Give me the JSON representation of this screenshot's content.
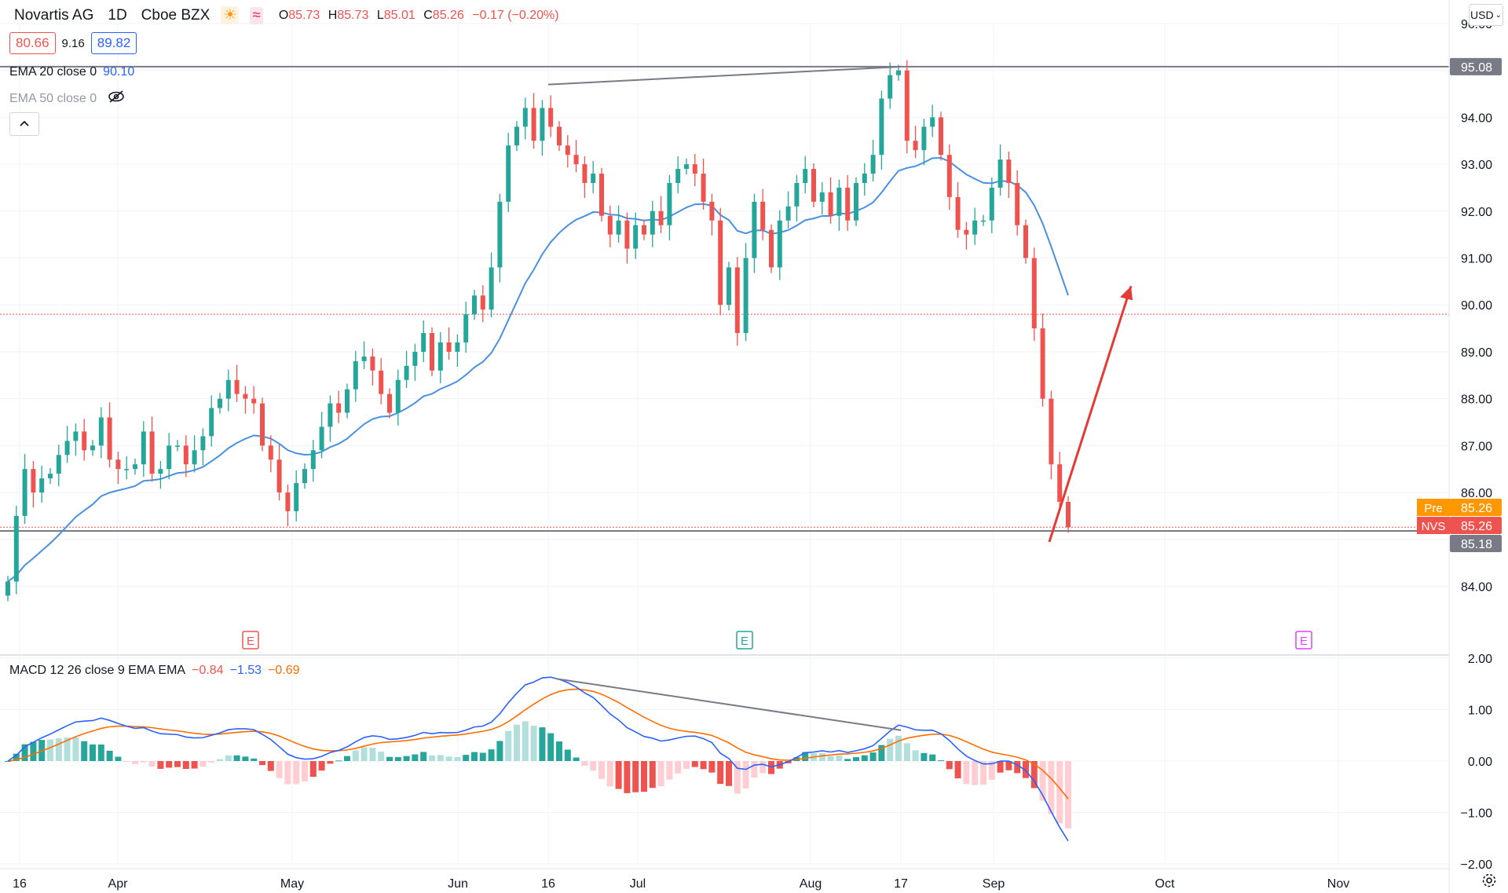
{
  "header": {
    "symbol": "Novartis AG",
    "interval": "1D",
    "exchange": "Cboe BZX",
    "ohlc": {
      "o_label": "O",
      "o": "85.73",
      "h_label": "H",
      "h": "85.73",
      "l_label": "L",
      "l": "85.01",
      "c_label": "C",
      "c": "85.26",
      "change": "−0.17 (−0.20%)"
    },
    "bid": "80.66",
    "spread": "9.16",
    "ask": "89.82",
    "currency": "USD"
  },
  "indicators": {
    "ema20": {
      "label": "EMA 20 close 0",
      "value": "90.10",
      "color": "#2962ff"
    },
    "ema50": {
      "label": "EMA 50 close 0"
    },
    "macd": {
      "label": "MACD 12 26 close 9 EMA EMA",
      "hist": "−0.84",
      "macd": "−1.53",
      "signal": "−0.69"
    }
  },
  "price_badges": {
    "top_line": "95.08",
    "pre_label": "Pre",
    "pre_value": "85.26",
    "nvs_label": "NVS",
    "nvs_value": "85.26",
    "bottom_line": "85.18"
  },
  "events": {
    "e1": "E",
    "e2": "E",
    "e3": "E"
  },
  "colors": {
    "up": "#26a69a",
    "down": "#ef5350",
    "ema": "#4a90e2",
    "macd_line": "#2962ff",
    "signal_line": "#ff6d00",
    "hist_up": "#26a69a",
    "hist_up_light": "#b2dfdb",
    "hist_down": "#ef5350",
    "hist_down_light": "#ffcdd2",
    "arrow": "#e53935"
  },
  "chart_data": {
    "type": "candlestick",
    "price_axis": {
      "min": 82.6,
      "max": 96.0,
      "ticks": [
        "84.00",
        "85.00",
        "86.00",
        "87.00",
        "88.00",
        "89.00",
        "90.00",
        "91.00",
        "92.00",
        "93.00",
        "94.00",
        "95.00",
        "96.00"
      ]
    },
    "macd_axis": {
      "min": -2.0,
      "max": 2.0,
      "ticks": [
        "2.00",
        "1.00",
        "0.00",
        "−1.00",
        "−2.00"
      ]
    },
    "time_axis": [
      "16",
      "Apr",
      "May",
      "Jun",
      "16",
      "Jul",
      "Aug",
      "17",
      "Sep",
      "Oct",
      "Nov"
    ],
    "close_series": [
      84.1,
      85.5,
      86.5,
      86.0,
      86.3,
      86.4,
      86.8,
      87.1,
      87.3,
      86.9,
      87.0,
      87.6,
      86.7,
      86.5,
      86.5,
      86.6,
      87.3,
      86.4,
      86.5,
      87.0,
      87.0,
      86.6,
      86.9,
      87.2,
      87.8,
      88.0,
      88.4,
      88.1,
      88.0,
      87.9,
      87.0,
      86.7,
      86.0,
      85.6,
      86.2,
      86.5,
      86.9,
      87.4,
      87.9,
      87.7,
      88.2,
      88.8,
      88.9,
      88.6,
      88.1,
      87.7,
      88.4,
      88.7,
      89.0,
      89.4,
      88.6,
      89.2,
      89.0,
      89.2,
      89.8,
      90.2,
      89.9,
      90.8,
      92.2,
      93.4,
      93.8,
      94.2,
      93.5,
      94.2,
      93.8,
      93.4,
      93.2,
      93.0,
      92.6,
      92.8,
      91.9,
      91.5,
      91.8,
      91.2,
      91.7,
      91.5,
      92.0,
      91.7,
      92.6,
      92.9,
      93.0,
      92.8,
      92.2,
      91.8,
      90.0,
      90.8,
      89.4,
      91.0,
      92.2,
      91.6,
      90.8,
      91.8,
      92.1,
      92.6,
      92.9,
      92.2,
      92.4,
      91.9,
      92.5,
      91.8,
      92.6,
      92.8,
      93.2,
      94.4,
      94.9,
      95.0,
      93.5,
      93.3,
      93.8,
      94.0,
      93.2,
      92.3,
      91.6,
      91.5,
      91.8,
      91.8,
      92.5,
      93.1,
      92.6,
      91.7,
      91.0,
      89.5,
      88.0,
      86.6,
      85.8,
      85.26
    ],
    "ema20_last": 90.1,
    "annotations": [
      {
        "type": "hline",
        "price": 95.08
      },
      {
        "type": "hline",
        "price": 85.18
      },
      {
        "type": "trendline",
        "from": {
          "price": 94.7
        },
        "to": {
          "price": 95.08
        }
      },
      {
        "type": "arrow",
        "from": {
          "price": 85.18
        },
        "to": {
          "price": 90.4
        }
      },
      {
        "type": "macd_divergence_line",
        "from": {
          "value": 1.6
        },
        "to": {
          "value": 0.6
        }
      }
    ]
  }
}
